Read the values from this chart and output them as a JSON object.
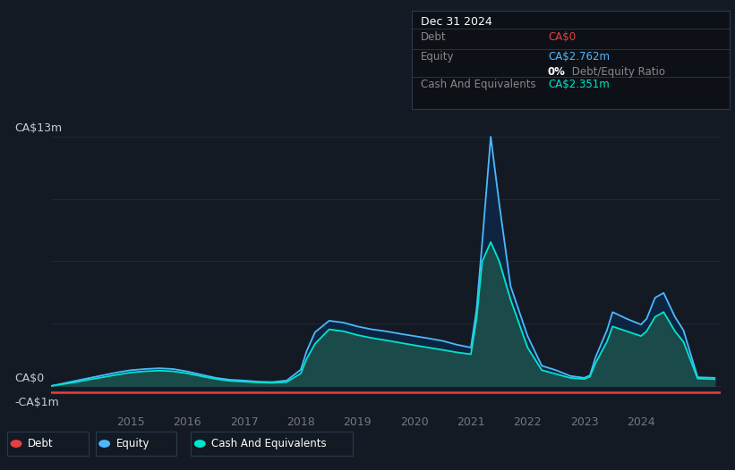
{
  "background_color": "#131a24",
  "plot_bg_color": "#131a24",
  "grid_color": "#1e2d3d",
  "y_label_top": "CA$13m",
  "y_label_zero": "CA$0",
  "y_label_neg": "-CA$1m",
  "x_ticks": [
    "2015",
    "2016",
    "2017",
    "2018",
    "2019",
    "2020",
    "2021",
    "2022",
    "2023",
    "2024"
  ],
  "x_tick_vals": [
    2015,
    2016,
    2017,
    2018,
    2019,
    2020,
    2021,
    2022,
    2023,
    2024
  ],
  "debt_color": "#e84040",
  "equity_color": "#4db8ff",
  "cash_color": "#00e5cc",
  "cash_fill_color": "#1a4a4a",
  "equity_fill_color": "#0d2540",
  "ylim": [
    -1.2,
    14.0
  ],
  "xlim": [
    2013.6,
    2025.4
  ],
  "title_box": {
    "date": "Dec 31 2024",
    "debt_label": "Debt",
    "debt_value": "CA$0",
    "equity_label": "Equity",
    "equity_value": "CA$2.762m",
    "ratio_bold": "0%",
    "ratio_rest": " Debt/Equity Ratio",
    "cash_label": "Cash And Equivalents",
    "cash_value": "CA$2.351m"
  },
  "legend": [
    {
      "label": "Debt",
      "color": "#e84040"
    },
    {
      "label": "Equity",
      "color": "#4db8ff"
    },
    {
      "label": "Cash And Equivalents",
      "color": "#00e5cc"
    }
  ],
  "time_points": [
    2013.6,
    2014.0,
    2014.25,
    2014.5,
    2014.75,
    2015.0,
    2015.25,
    2015.5,
    2015.75,
    2016.0,
    2016.25,
    2016.5,
    2016.75,
    2017.0,
    2017.25,
    2017.5,
    2017.75,
    2018.0,
    2018.1,
    2018.25,
    2018.5,
    2018.75,
    2019.0,
    2019.25,
    2019.5,
    2019.75,
    2020.0,
    2020.25,
    2020.5,
    2020.75,
    2021.0,
    2021.1,
    2021.2,
    2021.35,
    2021.5,
    2021.7,
    2022.0,
    2022.25,
    2022.5,
    2022.75,
    2023.0,
    2023.1,
    2023.2,
    2023.4,
    2023.5,
    2023.75,
    2024.0,
    2024.1,
    2024.25,
    2024.4,
    2024.6,
    2024.75,
    2025.0,
    2025.3
  ],
  "equity_values": [
    0.0,
    0.25,
    0.4,
    0.55,
    0.7,
    0.82,
    0.88,
    0.92,
    0.88,
    0.75,
    0.58,
    0.42,
    0.32,
    0.28,
    0.22,
    0.2,
    0.28,
    0.85,
    1.8,
    2.8,
    3.4,
    3.3,
    3.1,
    2.95,
    2.85,
    2.72,
    2.6,
    2.48,
    2.35,
    2.15,
    2.0,
    4.0,
    7.5,
    13.0,
    9.5,
    5.2,
    2.6,
    1.05,
    0.82,
    0.52,
    0.42,
    0.55,
    1.5,
    2.9,
    3.85,
    3.5,
    3.2,
    3.5,
    4.6,
    4.85,
    3.6,
    2.9,
    0.45,
    0.42
  ],
  "cash_values": [
    0.0,
    0.18,
    0.32,
    0.45,
    0.58,
    0.7,
    0.76,
    0.8,
    0.76,
    0.65,
    0.5,
    0.36,
    0.26,
    0.22,
    0.18,
    0.16,
    0.2,
    0.65,
    1.4,
    2.2,
    2.95,
    2.85,
    2.65,
    2.5,
    2.38,
    2.25,
    2.12,
    2.0,
    1.88,
    1.75,
    1.65,
    3.5,
    6.5,
    7.5,
    6.5,
    4.5,
    2.0,
    0.82,
    0.62,
    0.42,
    0.36,
    0.48,
    1.2,
    2.3,
    3.1,
    2.85,
    2.6,
    2.85,
    3.6,
    3.85,
    2.85,
    2.3,
    0.38,
    0.35
  ],
  "debt_y": -0.35
}
